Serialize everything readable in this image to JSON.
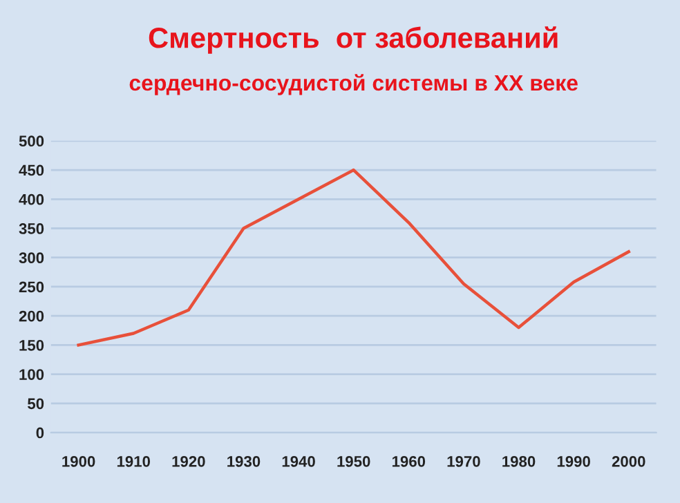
{
  "chart_data": {
    "type": "line",
    "title": "Смертность  от заболеваний",
    "subtitle": "сердечно-сосудистой системы в XX веке",
    "categories": [
      "1900",
      "1910",
      "1920",
      "1930",
      "1940",
      "1950",
      "1960",
      "1970",
      "1980",
      "1990",
      "2000"
    ],
    "series": [
      {
        "color": "#e8503a",
        "values": [
          150,
          170,
          210,
          350,
          400,
          450,
          360,
          255,
          180,
          258,
          310
        ]
      }
    ],
    "ylim": [
      0,
      500
    ],
    "yticks": [
      0,
      50,
      100,
      150,
      200,
      250,
      300,
      350,
      400,
      450,
      500
    ],
    "grid": "y",
    "marker": "none",
    "line_style": "solid"
  }
}
